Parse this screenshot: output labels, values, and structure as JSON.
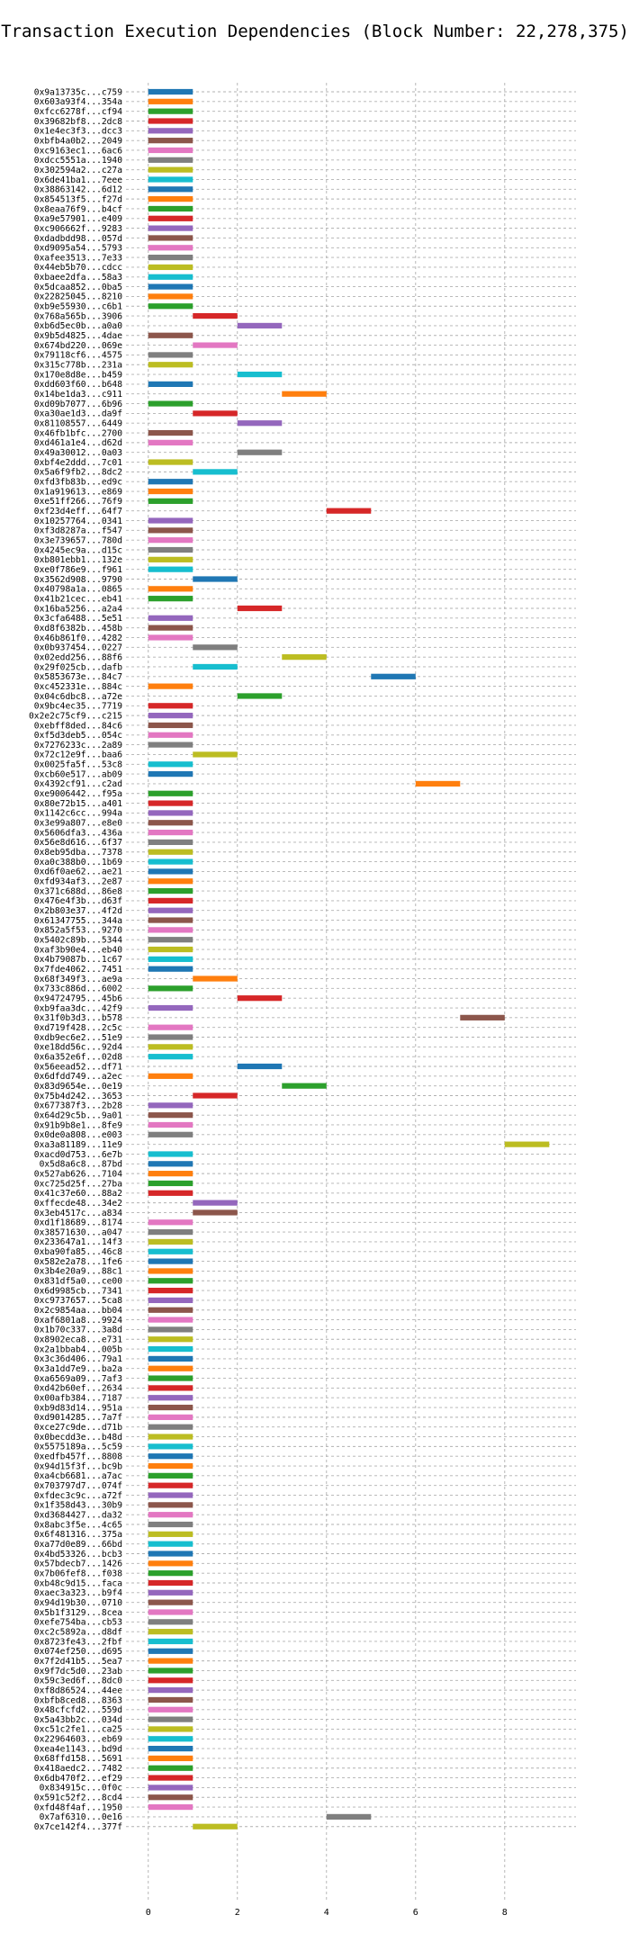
{
  "chart_data": {
    "type": "bar",
    "orientation": "horizontal",
    "title": "Transaction Execution Dependencies (Block Number: 22,278,375)",
    "xlabel": "",
    "ylabel": "",
    "xlim": [
      -0.5,
      9.6
    ],
    "xticks": [
      0,
      2,
      4,
      6,
      8
    ],
    "grid": true,
    "bar_height": 0.6,
    "palette": [
      "#1f77b4",
      "#ff7f0e",
      "#2ca02c",
      "#d62728",
      "#9467bd",
      "#8c564b",
      "#e377c2",
      "#7f7f7f",
      "#bcbd22",
      "#17becf"
    ],
    "transactions": [
      {
        "label": "0x9a13735c...c759",
        "start": 0,
        "end": 1
      },
      {
        "label": "0x603a93f4...354a",
        "start": 0,
        "end": 1
      },
      {
        "label": "0xfcc6278f...cf94",
        "start": 0,
        "end": 1
      },
      {
        "label": "0x39682bf8...2dc8",
        "start": 0,
        "end": 1
      },
      {
        "label": "0x1e4ec3f3...dcc3",
        "start": 0,
        "end": 1
      },
      {
        "label": "0xbfb4a0b2...2049",
        "start": 0,
        "end": 1
      },
      {
        "label": "0xc9163ec1...6ac6",
        "start": 0,
        "end": 1
      },
      {
        "label": "0xdcc5551a...1940",
        "start": 0,
        "end": 1
      },
      {
        "label": "0x302594a2...c27a",
        "start": 0,
        "end": 1
      },
      {
        "label": "0x6de41ba1...7eee",
        "start": 0,
        "end": 1
      },
      {
        "label": "0x38863142...6d12",
        "start": 0,
        "end": 1
      },
      {
        "label": "0x854513f5...f27d",
        "start": 0,
        "end": 1
      },
      {
        "label": "0x8eaa76f9...b4cf",
        "start": 0,
        "end": 1
      },
      {
        "label": "0xa9e57901...e409",
        "start": 0,
        "end": 1
      },
      {
        "label": "0xc906662f...9283",
        "start": 0,
        "end": 1
      },
      {
        "label": "0xdadbdd98...057d",
        "start": 0,
        "end": 1
      },
      {
        "label": "0xd9095a54...5793",
        "start": 0,
        "end": 1
      },
      {
        "label": "0xafee3513...7e33",
        "start": 0,
        "end": 1
      },
      {
        "label": "0x44eb5b70...cdcc",
        "start": 0,
        "end": 1
      },
      {
        "label": "0xbaee2dfa...58a3",
        "start": 0,
        "end": 1
      },
      {
        "label": "0x5dcaa852...0ba5",
        "start": 0,
        "end": 1
      },
      {
        "label": "0x22825045...8210",
        "start": 0,
        "end": 1
      },
      {
        "label": "0xb9e55930...c6b1",
        "start": 0,
        "end": 1
      },
      {
        "label": "0x768a565b...3906",
        "start": 1,
        "end": 2
      },
      {
        "label": "0xb6d5ec0b...a0a0",
        "start": 2,
        "end": 3
      },
      {
        "label": "0x9b5d4825...4dae",
        "start": 0,
        "end": 1
      },
      {
        "label": "0x674bd220...069e",
        "start": 1,
        "end": 2
      },
      {
        "label": "0x79118cf6...4575",
        "start": 0,
        "end": 1
      },
      {
        "label": "0x315c778b...231a",
        "start": 0,
        "end": 1
      },
      {
        "label": "0x170e8d8e...b459",
        "start": 2,
        "end": 3
      },
      {
        "label": "0xdd603f60...b648",
        "start": 0,
        "end": 1
      },
      {
        "label": "0x14be1da3...c911",
        "start": 3,
        "end": 4
      },
      {
        "label": "0xd09b7077...6b96",
        "start": 0,
        "end": 1
      },
      {
        "label": "0xa30ae1d3...da9f",
        "start": 1,
        "end": 2
      },
      {
        "label": "0x81108557...6449",
        "start": 2,
        "end": 3
      },
      {
        "label": "0x46fb1bfc...2700",
        "start": 0,
        "end": 1
      },
      {
        "label": "0xd461a1e4...d62d",
        "start": 0,
        "end": 1
      },
      {
        "label": "0x49a30012...0a03",
        "start": 2,
        "end": 3
      },
      {
        "label": "0xbf4e2ddd...7c01",
        "start": 0,
        "end": 1
      },
      {
        "label": "0x5a6f9fb2...8dc2",
        "start": 1,
        "end": 2
      },
      {
        "label": "0xfd3fb83b...ed9c",
        "start": 0,
        "end": 1
      },
      {
        "label": "0x1a919613...e869",
        "start": 0,
        "end": 1
      },
      {
        "label": "0xe51ff266...76f9",
        "start": 0,
        "end": 1
      },
      {
        "label": "0xf23d4eff...64f7",
        "start": 4,
        "end": 5
      },
      {
        "label": "0x10257764...0341",
        "start": 0,
        "end": 1
      },
      {
        "label": "0xf3d8287a...f547",
        "start": 0,
        "end": 1
      },
      {
        "label": "0x3e739657...780d",
        "start": 0,
        "end": 1
      },
      {
        "label": "0x4245ec9a...d15c",
        "start": 0,
        "end": 1
      },
      {
        "label": "0xb801ebb1...132e",
        "start": 0,
        "end": 1
      },
      {
        "label": "0xe0f786e9...f961",
        "start": 0,
        "end": 1
      },
      {
        "label": "0x3562d908...9790",
        "start": 1,
        "end": 2
      },
      {
        "label": "0x40798a1a...0865",
        "start": 0,
        "end": 1
      },
      {
        "label": "0x41b21cec...eb41",
        "start": 0,
        "end": 1
      },
      {
        "label": "0x16ba5256...a2a4",
        "start": 2,
        "end": 3
      },
      {
        "label": "0x3cfa6488...5e51",
        "start": 0,
        "end": 1
      },
      {
        "label": "0xd8f6382b...458b",
        "start": 0,
        "end": 1
      },
      {
        "label": "0x46b861f0...4282",
        "start": 0,
        "end": 1
      },
      {
        "label": "0x0b937454...0227",
        "start": 1,
        "end": 2
      },
      {
        "label": "0x02edd256...88f6",
        "start": 3,
        "end": 4
      },
      {
        "label": "0x29f025cb...dafb",
        "start": 1,
        "end": 2
      },
      {
        "label": "0x5853673e...84c7",
        "start": 5,
        "end": 6
      },
      {
        "label": "0xc452331e...884c",
        "start": 0,
        "end": 1
      },
      {
        "label": "0x04c6dbc8...a72e",
        "start": 2,
        "end": 3
      },
      {
        "label": "0x9bc4ec35...7719",
        "start": 0,
        "end": 1
      },
      {
        "label": "0x2e2c75cf9...c215",
        "start": 0,
        "end": 1
      },
      {
        "label": "0xebff8ded...84c6",
        "start": 0,
        "end": 1
      },
      {
        "label": "0xf5d3deb5...054c",
        "start": 0,
        "end": 1
      },
      {
        "label": "0x7276233c...2a89",
        "start": 0,
        "end": 1
      },
      {
        "label": "0x72c12e9f...baa6",
        "start": 1,
        "end": 2
      },
      {
        "label": "0x0025fa5f...53c8",
        "start": 0,
        "end": 1
      },
      {
        "label": "0xcb60e517...ab09",
        "start": 0,
        "end": 1
      },
      {
        "label": "0x4392cf91...c2ad",
        "start": 6,
        "end": 7
      },
      {
        "label": "0xe9006442...f95a",
        "start": 0,
        "end": 1
      },
      {
        "label": "0x80e72b15...a401",
        "start": 0,
        "end": 1
      },
      {
        "label": "0x1142c6cc...994a",
        "start": 0,
        "end": 1
      },
      {
        "label": "0x3e99a807...e8e0",
        "start": 0,
        "end": 1
      },
      {
        "label": "0x5606dfa3...436a",
        "start": 0,
        "end": 1
      },
      {
        "label": "0x56e8d616...6f37",
        "start": 0,
        "end": 1
      },
      {
        "label": "0x8eb95dba...7378",
        "start": 0,
        "end": 1
      },
      {
        "label": "0xa0c388b0...1b69",
        "start": 0,
        "end": 1
      },
      {
        "label": "0xd6f0ae62...ae21",
        "start": 0,
        "end": 1
      },
      {
        "label": "0xfd934af3...2e87",
        "start": 0,
        "end": 1
      },
      {
        "label": "0x371c688d...86e8",
        "start": 0,
        "end": 1
      },
      {
        "label": "0x476e4f3b...d63f",
        "start": 0,
        "end": 1
      },
      {
        "label": "0x2b803e37...4f2d",
        "start": 0,
        "end": 1
      },
      {
        "label": "0x61347755...344a",
        "start": 0,
        "end": 1
      },
      {
        "label": "0x852a5f53...9270",
        "start": 0,
        "end": 1
      },
      {
        "label": "0x5402c89b...5344",
        "start": 0,
        "end": 1
      },
      {
        "label": "0xaf3b90e4...eb40",
        "start": 0,
        "end": 1
      },
      {
        "label": "0x4b79087b...1c67",
        "start": 0,
        "end": 1
      },
      {
        "label": "0x7fde4062...7451",
        "start": 0,
        "end": 1
      },
      {
        "label": "0x68f349f3...ae9a",
        "start": 1,
        "end": 2
      },
      {
        "label": "0x733c886d...6002",
        "start": 0,
        "end": 1
      },
      {
        "label": "0x94724795...45b6",
        "start": 2,
        "end": 3
      },
      {
        "label": "0xb9faa3dc...42f9",
        "start": 0,
        "end": 1
      },
      {
        "label": "0x31f0b3d3...b578",
        "start": 7,
        "end": 8
      },
      {
        "label": "0xd719f428...2c5c",
        "start": 0,
        "end": 1
      },
      {
        "label": "0xdb9ec6e2...51e9",
        "start": 0,
        "end": 1
      },
      {
        "label": "0xe18dd56c...92d4",
        "start": 0,
        "end": 1
      },
      {
        "label": "0x6a352e6f...02d8",
        "start": 0,
        "end": 1
      },
      {
        "label": "0x56eead52...df71",
        "start": 2,
        "end": 3
      },
      {
        "label": "0x6dfdd749...a2ec",
        "start": 0,
        "end": 1
      },
      {
        "label": "0x83d9654e...0e19",
        "start": 3,
        "end": 4
      },
      {
        "label": "0x75b4d242...3653",
        "start": 1,
        "end": 2
      },
      {
        "label": "0x677387f3...2b28",
        "start": 0,
        "end": 1
      },
      {
        "label": "0x64d29c5b...9a01",
        "start": 0,
        "end": 1
      },
      {
        "label": "0x91b9b8e1...8fe9",
        "start": 0,
        "end": 1
      },
      {
        "label": "0x0de0a808...e003",
        "start": 0,
        "end": 1
      },
      {
        "label": "0xa3a81189...11e9",
        "start": 8,
        "end": 9
      },
      {
        "label": "0xacd0d753...6e7b",
        "start": 0,
        "end": 1
      },
      {
        "label": "0x5d8a6c8...87bd",
        "start": 0,
        "end": 1
      },
      {
        "label": "0x527ab626...7104",
        "start": 0,
        "end": 1
      },
      {
        "label": "0xc725d25f...27ba",
        "start": 0,
        "end": 1
      },
      {
        "label": "0x41c37e60...88a2",
        "start": 0,
        "end": 1
      },
      {
        "label": "0xffecde48...34e2",
        "start": 1,
        "end": 2
      },
      {
        "label": "0x3eb4517c...a834",
        "start": 1,
        "end": 2
      },
      {
        "label": "0xd1f18689...8174",
        "start": 0,
        "end": 1
      },
      {
        "label": "0x38571630...a047",
        "start": 0,
        "end": 1
      },
      {
        "label": "0x233647a1...14f3",
        "start": 0,
        "end": 1
      },
      {
        "label": "0xba90fa85...46c8",
        "start": 0,
        "end": 1
      },
      {
        "label": "0x582e2a78...1fe6",
        "start": 0,
        "end": 1
      },
      {
        "label": "0x3b4e20a9...88c1",
        "start": 0,
        "end": 1
      },
      {
        "label": "0x831df5a0...ce00",
        "start": 0,
        "end": 1
      },
      {
        "label": "0x6d9985cb...7341",
        "start": 0,
        "end": 1
      },
      {
        "label": "0xc9737657...5ca8",
        "start": 0,
        "end": 1
      },
      {
        "label": "0x2c9854aa...bb04",
        "start": 0,
        "end": 1
      },
      {
        "label": "0xaf6801a8...9924",
        "start": 0,
        "end": 1
      },
      {
        "label": "0x1b70c337...3a8d",
        "start": 0,
        "end": 1
      },
      {
        "label": "0x8902eca8...e731",
        "start": 0,
        "end": 1
      },
      {
        "label": "0x2a1bbab4...005b",
        "start": 0,
        "end": 1
      },
      {
        "label": "0x3c36d406...79a1",
        "start": 0,
        "end": 1
      },
      {
        "label": "0x3a1dd7e9...ba2a",
        "start": 0,
        "end": 1
      },
      {
        "label": "0xa6569a09...7af3",
        "start": 0,
        "end": 1
      },
      {
        "label": "0xd42b60ef...2634",
        "start": 0,
        "end": 1
      },
      {
        "label": "0x00afb384...7187",
        "start": 0,
        "end": 1
      },
      {
        "label": "0xb9d83d14...951a",
        "start": 0,
        "end": 1
      },
      {
        "label": "0xd9014285...7a7f",
        "start": 0,
        "end": 1
      },
      {
        "label": "0xce27c9de...d71b",
        "start": 0,
        "end": 1
      },
      {
        "label": "0x0becdd3e...b48d",
        "start": 0,
        "end": 1
      },
      {
        "label": "0x5575189a...5c59",
        "start": 0,
        "end": 1
      },
      {
        "label": "0xedfb457f...8808",
        "start": 0,
        "end": 1
      },
      {
        "label": "0x94d15f3f...bc9b",
        "start": 0,
        "end": 1
      },
      {
        "label": "0xa4cb6681...a7ac",
        "start": 0,
        "end": 1
      },
      {
        "label": "0x703797d7...074f",
        "start": 0,
        "end": 1
      },
      {
        "label": "0xfdec3c9c...a72f",
        "start": 0,
        "end": 1
      },
      {
        "label": "0x1f358d43...30b9",
        "start": 0,
        "end": 1
      },
      {
        "label": "0xd3684427...da32",
        "start": 0,
        "end": 1
      },
      {
        "label": "0x8abc3f5e...4c65",
        "start": 0,
        "end": 1
      },
      {
        "label": "0x6f481316...375a",
        "start": 0,
        "end": 1
      },
      {
        "label": "0xa77d0e89...66bd",
        "start": 0,
        "end": 1
      },
      {
        "label": "0x4bd53326...bcb3",
        "start": 0,
        "end": 1
      },
      {
        "label": "0x57bdecb7...1426",
        "start": 0,
        "end": 1
      },
      {
        "label": "0x7b06fef8...f038",
        "start": 0,
        "end": 1
      },
      {
        "label": "0xb48c9d15...faca",
        "start": 0,
        "end": 1
      },
      {
        "label": "0xaec3a323...b9f4",
        "start": 0,
        "end": 1
      },
      {
        "label": "0x94d19b30...0710",
        "start": 0,
        "end": 1
      },
      {
        "label": "0x5b1f3129...8cea",
        "start": 0,
        "end": 1
      },
      {
        "label": "0xefe754ba...cb53",
        "start": 0,
        "end": 1
      },
      {
        "label": "0xc2c5892a...d8df",
        "start": 0,
        "end": 1
      },
      {
        "label": "0x8723fe43...2fbf",
        "start": 0,
        "end": 1
      },
      {
        "label": "0x074ef250...d695",
        "start": 0,
        "end": 1
      },
      {
        "label": "0x7f2d41b5...5ea7",
        "start": 0,
        "end": 1
      },
      {
        "label": "0x9f7dc5d0...23ab",
        "start": 0,
        "end": 1
      },
      {
        "label": "0x59c3ed6f...8dc0",
        "start": 0,
        "end": 1
      },
      {
        "label": "0xf8d86524...44ee",
        "start": 0,
        "end": 1
      },
      {
        "label": "0xbfb8ced8...8363",
        "start": 0,
        "end": 1
      },
      {
        "label": "0x48cfcfd2...559d",
        "start": 0,
        "end": 1
      },
      {
        "label": "0x5a43bb2c...034d",
        "start": 0,
        "end": 1
      },
      {
        "label": "0xc51c2fe1...ca25",
        "start": 0,
        "end": 1
      },
      {
        "label": "0x22964603...eb69",
        "start": 0,
        "end": 1
      },
      {
        "label": "0xea4e1143...bd9d",
        "start": 0,
        "end": 1
      },
      {
        "label": "0x68ffd158...5691",
        "start": 0,
        "end": 1
      },
      {
        "label": "0x418aedc2...7482",
        "start": 0,
        "end": 1
      },
      {
        "label": "0x6db470f2...ef29",
        "start": 0,
        "end": 1
      },
      {
        "label": "0x834915c...0f0c",
        "start": 0,
        "end": 1
      },
      {
        "label": "0x591c52f2...8cd4",
        "start": 0,
        "end": 1
      },
      {
        "label": "0xfd48f4af...1950",
        "start": 0,
        "end": 1
      },
      {
        "label": "0x7af6310...0e16",
        "start": 4,
        "end": 5
      },
      {
        "label": "0x7ce142f4...377f",
        "start": 1,
        "end": 2
      }
    ]
  }
}
